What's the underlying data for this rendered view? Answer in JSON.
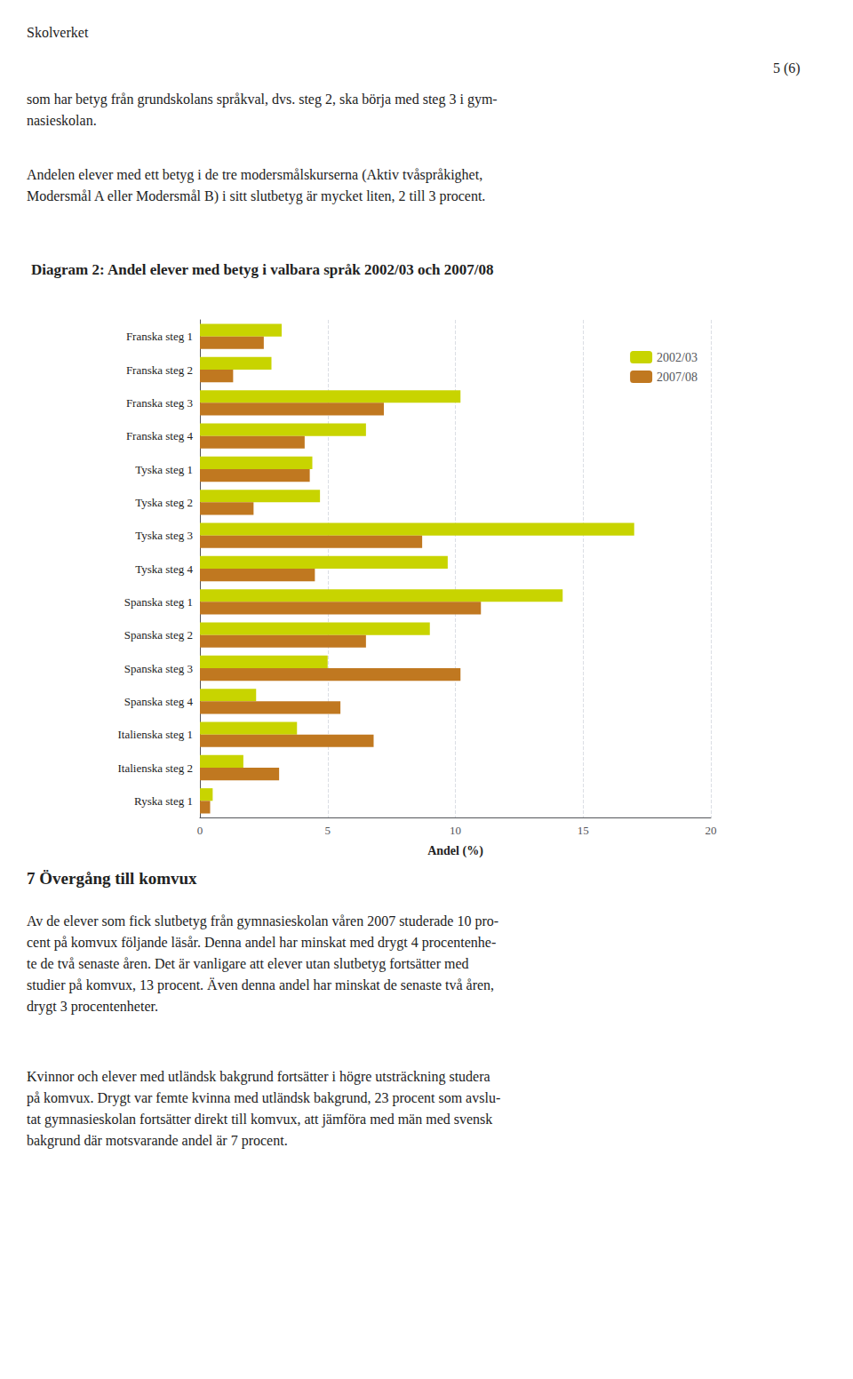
{
  "chart_data": {
    "type": "bar",
    "orientation": "horizontal",
    "title": "Diagram 2: Andel elever med betyg i valbara språk 2002/03 och 2007/08",
    "annotations": [
      "Skolverket",
      "5 (6)",
      "som har betyg från grundskolans språkval, dvs. steg 2, ska börja med steg 3 i gym-\nnasieskolan.",
      "Andelen elever med ett betyg i de tre modersmålskurserna (Aktiv tvåspråkighet,\nModersmål A eller Modersmål B) i sitt slutbetyg är mycket liten, 2 till 3 procent.",
      "7 Övergång till komvux",
      "Av de elever som fick slutbetyg från gymnasieskolan våren 2007 studerade 10 pro-\ncent på komvux följande läsår. Denna andel har minskat med drygt 4 procentenhe-\nte de två senaste åren. Det är vanligare att elever utan slutbetyg fortsätter med\nstudier på komvux, 13 procent. Även denna andel har minskat de senaste två åren,\ndrygt 3 procentenheter.",
      "Kvinnor och elever med utländsk bakgrund fortsätter i högre utsträckning studera\npå komvux. Drygt var femte kvinna med utländsk bakgrund, 23 procent som avslu-\ntat gymnasieskolan fortsätter direkt till komvux, att jämföra med män med svensk\nbakgrund där motsvarande andel är 7 procent."
    ],
    "categories": [
      "Franska steg 1",
      "Franska steg 2",
      "Franska steg 3",
      "Franska steg 4",
      "Tyska steg 1",
      "Tyska steg 2",
      "Tyska steg 3",
      "Tyska steg 4",
      "Spanska steg 1",
      "Spanska steg 2",
      "Spanska steg 3",
      "Spanska steg 4",
      "Italienska steg 1",
      "Italienska steg 2",
      "Ryska steg 1"
    ],
    "series": [
      {
        "name": "2002/03",
        "color": "#c8d400",
        "values": [
          3.2,
          2.8,
          10.2,
          6.5,
          4.4,
          4.7,
          17.0,
          9.7,
          14.2,
          9.0,
          5.0,
          2.2,
          3.8,
          1.7,
          0.5
        ]
      },
      {
        "name": "2007/08",
        "color": "#c07820",
        "values": [
          2.5,
          1.3,
          7.2,
          4.1,
          4.3,
          2.1,
          8.7,
          4.5,
          11.0,
          6.5,
          10.2,
          5.5,
          6.8,
          3.1,
          0.4
        ]
      }
    ],
    "xlabel": "Andel (%)",
    "xlim": [
      0,
      20
    ],
    "xticks": [
      0,
      5,
      10,
      15,
      20
    ],
    "grid": true,
    "legend": "upper right"
  }
}
